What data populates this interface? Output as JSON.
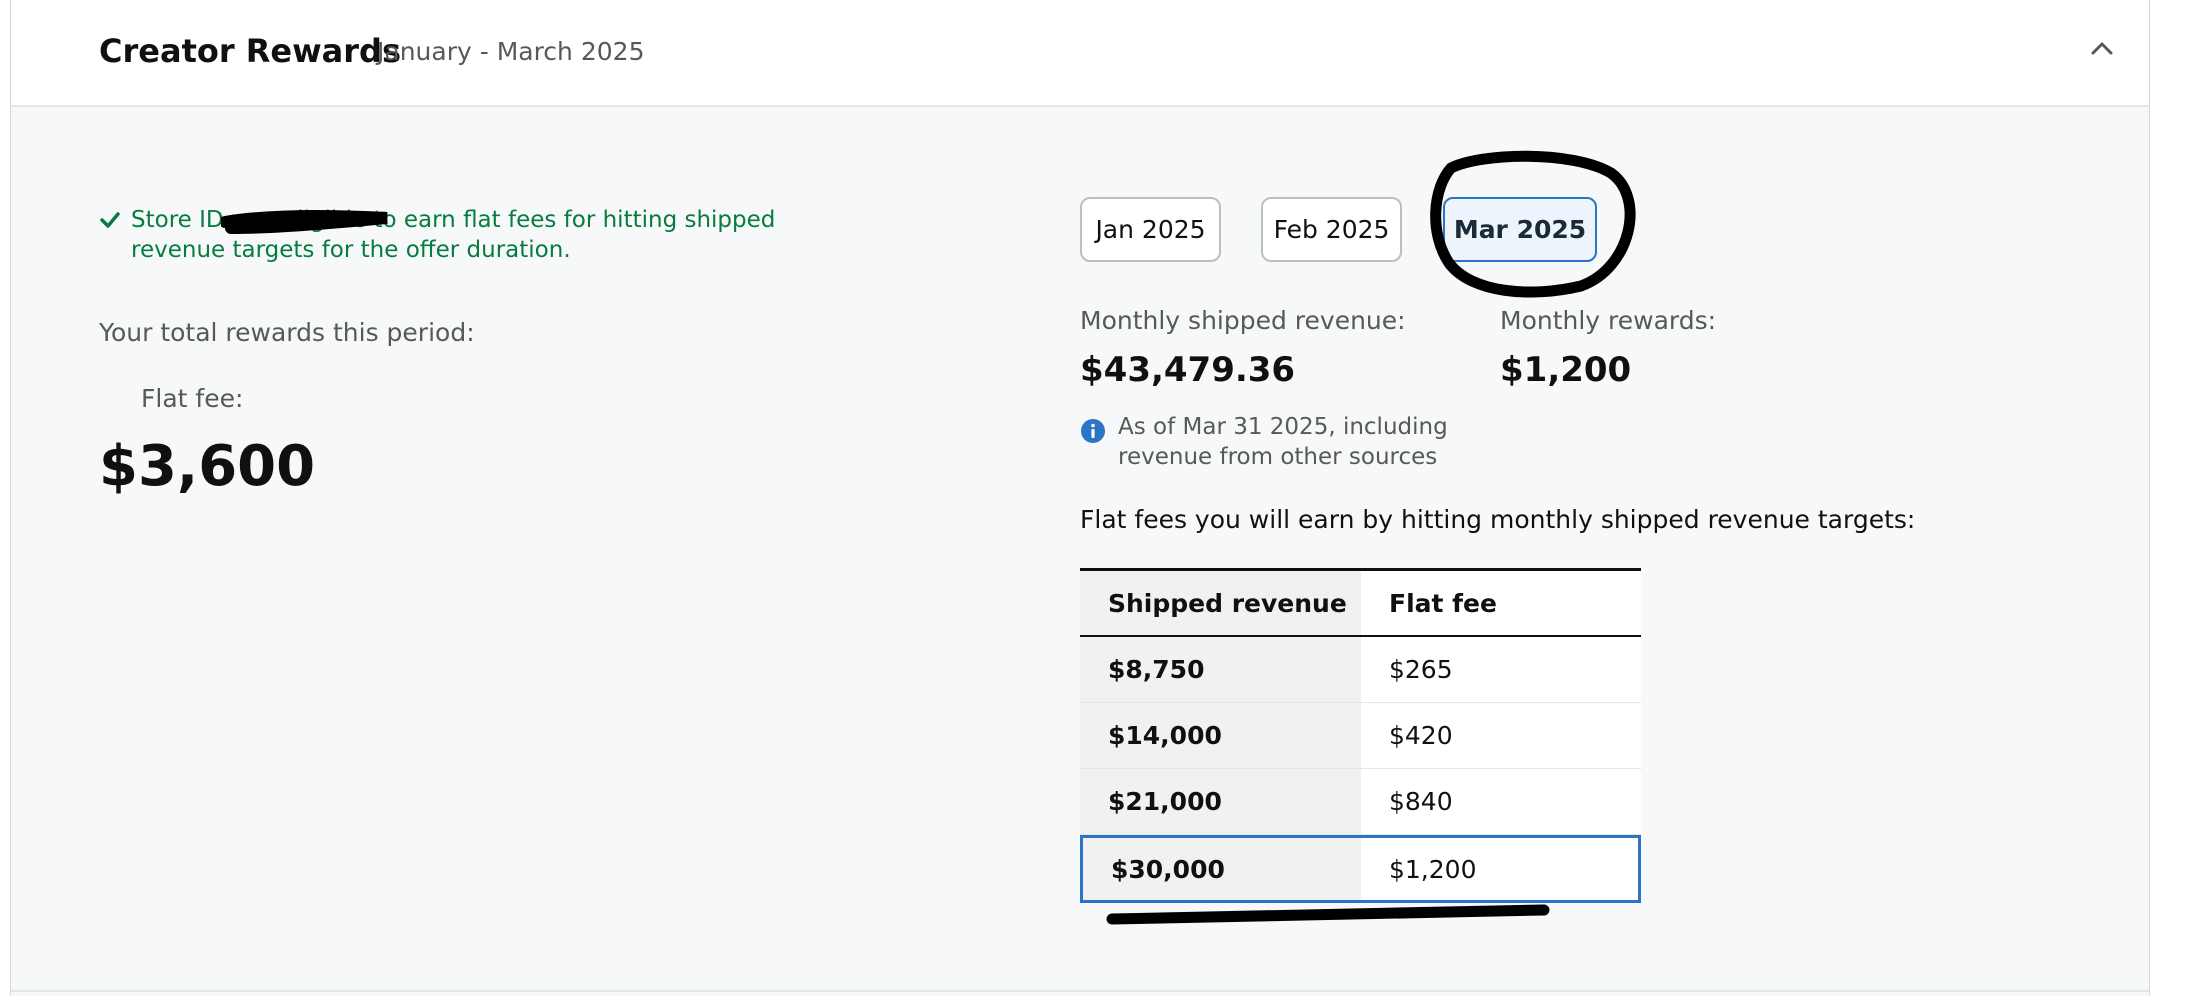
{
  "header": {
    "title": "Creator Rewards",
    "subtitle": "January - March 2025",
    "collapse_icon": "chevron-up-icon"
  },
  "summary": {
    "eligibility_text": "Store ID                was eligible to earn flat fees for hitting shipped revenue targets for the offer duration.",
    "eligibility_icon": "check-icon",
    "total_label": "Your total rewards this period:",
    "flat_fee_label": "Flat fee:",
    "flat_fee_value": "$3,600"
  },
  "months": {
    "tabs": [
      {
        "label": "Jan 2025",
        "selected": false
      },
      {
        "label": "Feb 2025",
        "selected": false
      },
      {
        "label": "Mar 2025",
        "selected": true
      }
    ]
  },
  "metrics": {
    "revenue_label": "Monthly shipped revenue:",
    "revenue_value": "$43,479.36",
    "rewards_label": "Monthly rewards:",
    "rewards_value": "$1,200",
    "note": "As of Mar 31 2025, including revenue from other sources",
    "note_icon": "info-icon"
  },
  "targets": {
    "heading": "Flat fees you will earn by hitting monthly shipped revenue targets:",
    "columns": [
      "Shipped revenue",
      "Flat fee"
    ],
    "rows": [
      {
        "revenue": "$8,750",
        "fee": "$265"
      },
      {
        "revenue": "$14,000",
        "fee": "$420"
      },
      {
        "revenue": "$21,000",
        "fee": "$840"
      },
      {
        "revenue": "$30,000",
        "fee": "$1,200"
      }
    ]
  },
  "colors": {
    "accent_blue": "#2b74c6",
    "success_green": "#067d3e",
    "muted_text": "#565959"
  }
}
